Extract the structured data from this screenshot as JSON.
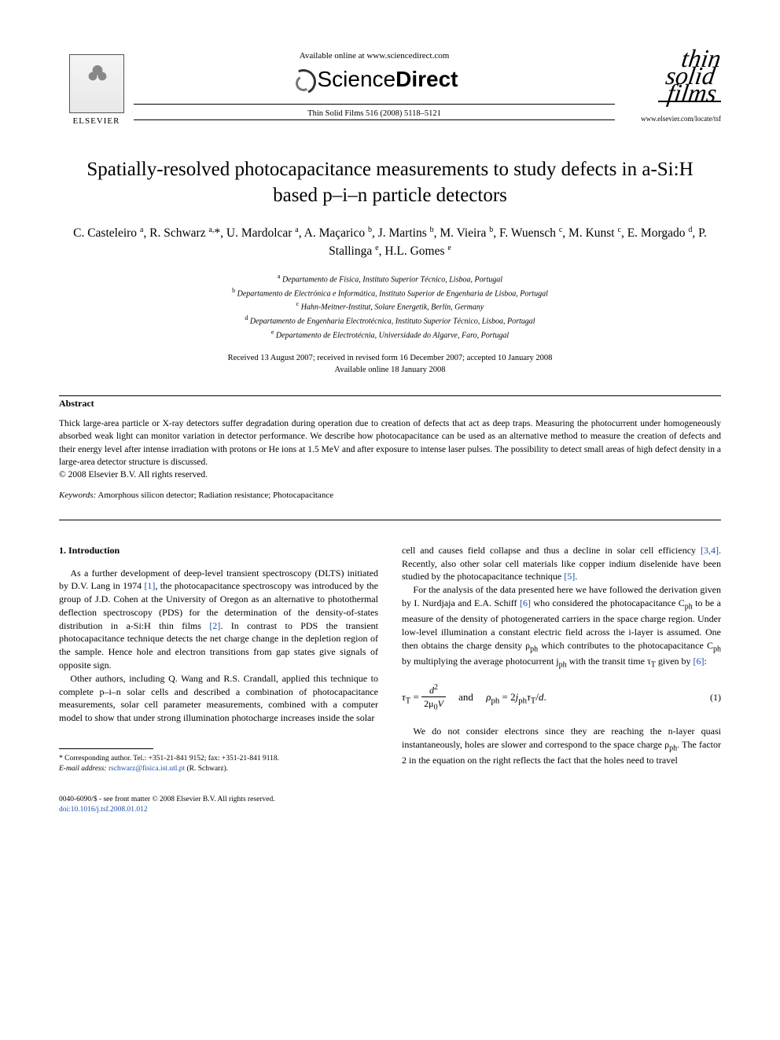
{
  "header": {
    "available_text": "Available online at www.sciencedirect.com",
    "brand_prefix": "Science",
    "brand_suffix": "Direct",
    "citation": "Thin Solid Films 516 (2008) 5118–5121",
    "elsevier_label": "ELSEVIER",
    "journal_line1": "thin",
    "journal_line2": "solid",
    "journal_line3": "films",
    "journal_url": "www.elsevier.com/locate/tsf"
  },
  "title": "Spatially-resolved photocapacitance measurements to study defects in a-Si:H based p–i–n particle detectors",
  "authors_html": "C. Casteleiro <sup>a</sup>, R. Schwarz <sup>a,</sup>*, U. Mardolcar <sup>a</sup>, A. Maçarico <sup>b</sup>, J. Martins <sup>b</sup>, M. Vieira <sup>b</sup>, F. Wuensch <sup>c</sup>, M. Kunst <sup>c</sup>, E. Morgado <sup>d</sup>, P. Stallinga <sup>e</sup>, H.L. Gomes <sup>e</sup>",
  "affiliations": {
    "a": "Departamento de Física, Instituto Superior Técnico, Lisboa, Portugal",
    "b": "Departamento de Electrónica e Informática, Instituto Superior de Engenharia de Lisboa, Portugal",
    "c": "Hahn-Meitner-Institut, Solare Energetik, Berlin, Germany",
    "d": "Departamento de Engenharia Electrotécnica, Instituto Superior Técnico, Lisboa, Portugal",
    "e": "Departamento de Electrotécnia, Universidade do Algarve, Faro, Portugal"
  },
  "dates": {
    "line1": "Received 13 August 2007; received in revised form 16 December 2007; accepted 10 January 2008",
    "line2": "Available online 18 January 2008"
  },
  "abstract": {
    "label": "Abstract",
    "text": "Thick large-area particle or X-ray detectors suffer degradation during operation due to creation of defects that act as deep traps. Measuring the photocurrent under homogeneously absorbed weak light can monitor variation in detector performance. We describe how photocapacitance can be used as an alternative method to measure the creation of defects and their energy level after intense irradiation with protons or He ions at 1.5 MeV and after exposure to intense laser pulses. The possibility to detect small areas of high defect density in a large-area detector structure is discussed.",
    "copyright": "© 2008 Elsevier B.V. All rights reserved."
  },
  "keywords": {
    "label": "Keywords:",
    "text": "Amorphous silicon detector; Radiation resistance; Photocapacitance"
  },
  "section1": {
    "heading": "1. Introduction",
    "p1a": "As a further development of deep-level transient spectroscopy (DLTS) initiated by D.V. Lang in 1974 ",
    "ref1": "[1]",
    "p1b": ", the photocapacitance spectroscopy was introduced by the group of J.D. Cohen at the University of Oregon as an alternative to photothermal deflection spectroscopy (PDS) for the determination of the density-of-states distribution in a-Si:H thin films ",
    "ref2": "[2]",
    "p1c": ". In contrast to PDS the transient photocapacitance technique detects the net charge change in the depletion region of the sample. Hence hole and electron transitions from gap states give signals of opposite sign.",
    "p2": "Other authors, including Q. Wang and R.S. Crandall, applied this technique to complete p–i–n solar cells and described a combination of photocapacitance measurements, solar cell parameter measurements, combined with a computer model to show that under strong illumination photocharge increases inside the solar",
    "p3a": "cell and causes field collapse and thus a decline in solar cell efficiency ",
    "ref34": "[3,4]",
    "p3b": ". Recently, also other solar cell materials like copper indium diselenide have been studied by the photocapacitance technique ",
    "ref5": "[5]",
    "p3c": ".",
    "p4a": "For the analysis of the data presented here we have followed the derivation given by I. Nurdjaja and E.A. Schiff ",
    "ref6a": "[6]",
    "p4b": " who considered the photocapacitance C",
    "p4b_sub1": "ph",
    "p4c": " to be a measure of the density of photogenerated carriers in the space charge region. Under low-level illumination a constant electric field across the i-layer is assumed. One then obtains the charge density ρ",
    "p4c_sub1": "ph",
    "p4d": " which contributes to the photocapacitance C",
    "p4d_sub1": "ph",
    "p4e": " by multiplying the average photocurrent j",
    "p4e_sub1": "ph",
    "p4f": " with the transit time τ",
    "p4f_sub1": "T",
    "p4g": " given by ",
    "ref6b": "[6]",
    "p4h": ":",
    "eq_num": "(1)",
    "p5a": "We do not consider electrons since they are reaching the n-layer quasi instantaneously, holes are slower and correspond to the space charge ρ",
    "p5_sub": "ph",
    "p5b": ". The factor 2 in the equation on the right reflects the fact that the holes need to travel"
  },
  "footnote": {
    "line1": "* Corresponding author. Tel.: +351-21-841 9152; fax: +351-21-841 9118.",
    "email_label": "E-mail address:",
    "email": "rschwarz@fisica.ist.utl.pt",
    "email_tail": "(R. Schwarz)."
  },
  "footer": {
    "line": "0040-6090/$ - see front matter © 2008 Elsevier B.V. All rights reserved.",
    "doi": "doi:10.1016/j.tsf.2008.01.012"
  },
  "colors": {
    "link": "#1b4fa8",
    "text": "#000000",
    "bg": "#ffffff"
  }
}
